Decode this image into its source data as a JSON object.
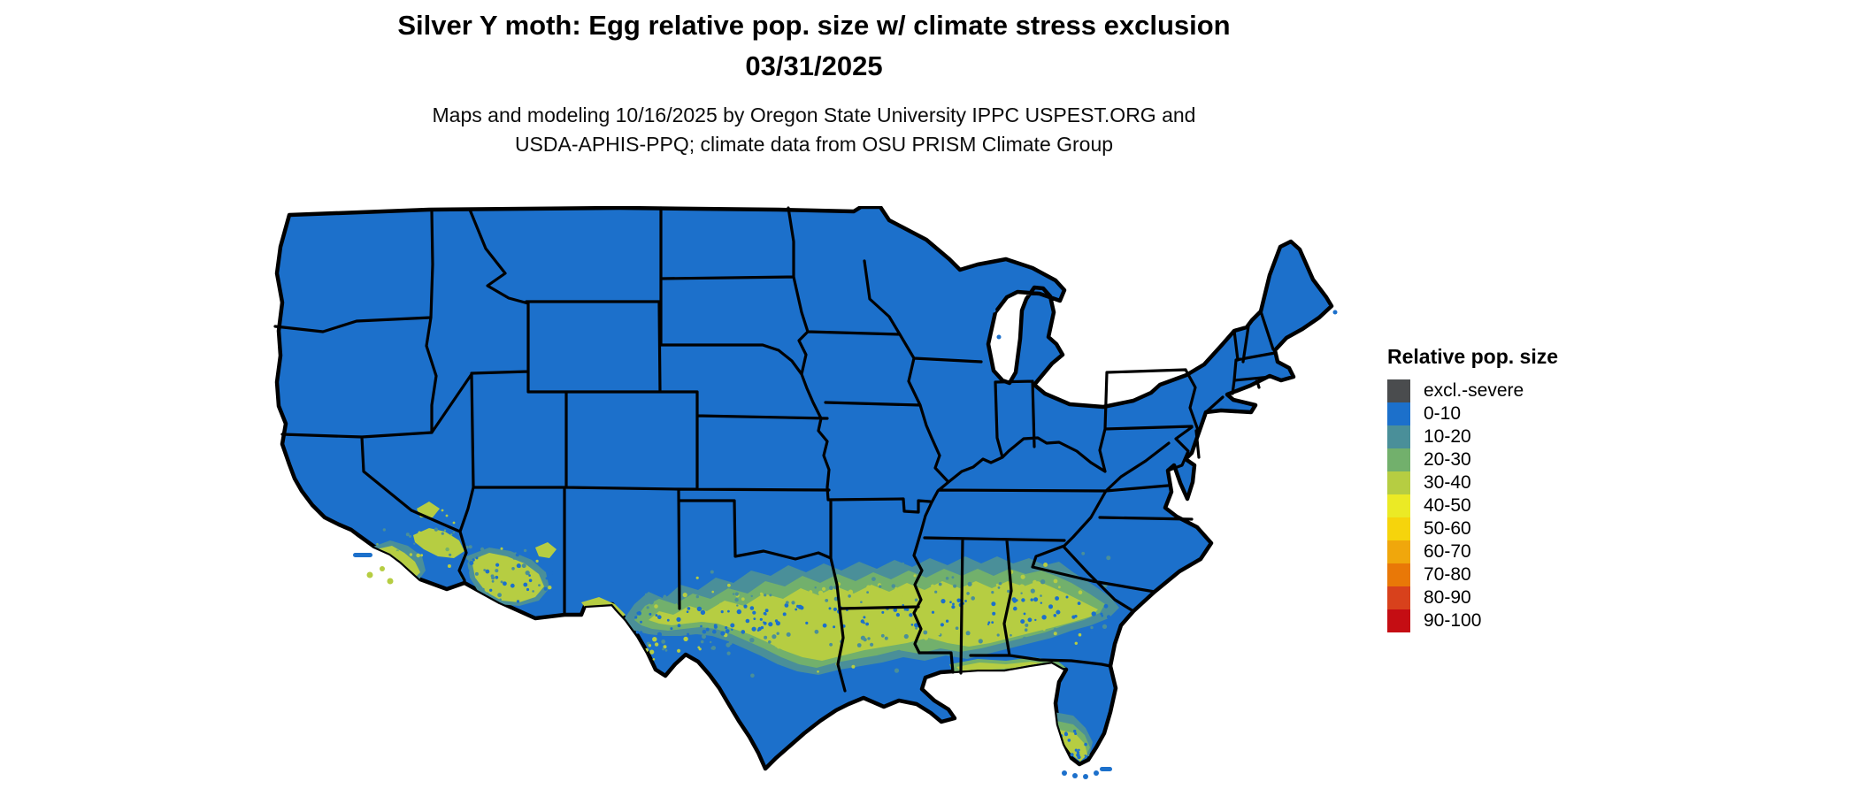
{
  "title": {
    "line1": "Silver Y moth: Egg relative pop. size w/ climate stress exclusion",
    "line2": "03/31/2025"
  },
  "subtitle": {
    "line1": "Maps and modeling 10/16/2025 by Oregon State University IPPC USPEST.ORG and",
    "line2": "USDA-APHIS-PPQ; climate data from OSU PRISM Climate Group"
  },
  "legend": {
    "title": "Relative pop. size",
    "items": [
      {
        "label": "excl.-severe",
        "color": "#4a4c4e"
      },
      {
        "label": "0-10",
        "color": "#1c70cb"
      },
      {
        "label": "10-20",
        "color": "#4a8f99"
      },
      {
        "label": "20-30",
        "color": "#72b06c"
      },
      {
        "label": "30-40",
        "color": "#b6cd42"
      },
      {
        "label": "40-50",
        "color": "#ebea25"
      },
      {
        "label": "50-60",
        "color": "#f6d40c"
      },
      {
        "label": "60-70",
        "color": "#f0a70c"
      },
      {
        "label": "70-80",
        "color": "#e97807"
      },
      {
        "label": "80-90",
        "color": "#d8411c"
      },
      {
        "label": "90-100",
        "color": "#c50d13"
      }
    ]
  },
  "map": {
    "kind": "CONUS raster model map with state borders",
    "border_color": "#000000",
    "water_color": "#ffffff",
    "base_bin": "0-10",
    "observed_distribution": [
      {
        "bin": "0-10",
        "where": "most of the continental United States"
      },
      {
        "bin": "10-20",
        "where": "transition fringe surrounding the southern band and coastal south Florida"
      },
      {
        "bin": "20-30",
        "where": "inner fringe of the southern band, Gulf Coast strip and south Florida"
      },
      {
        "bin": "30-40",
        "where": "band across central/southern Texas through Louisiana, Mississippi, Alabama, southern Georgia and north Florida Gulf coast; southern Arizona patches; coastal southern California; southern tip of Florida"
      }
    ]
  }
}
